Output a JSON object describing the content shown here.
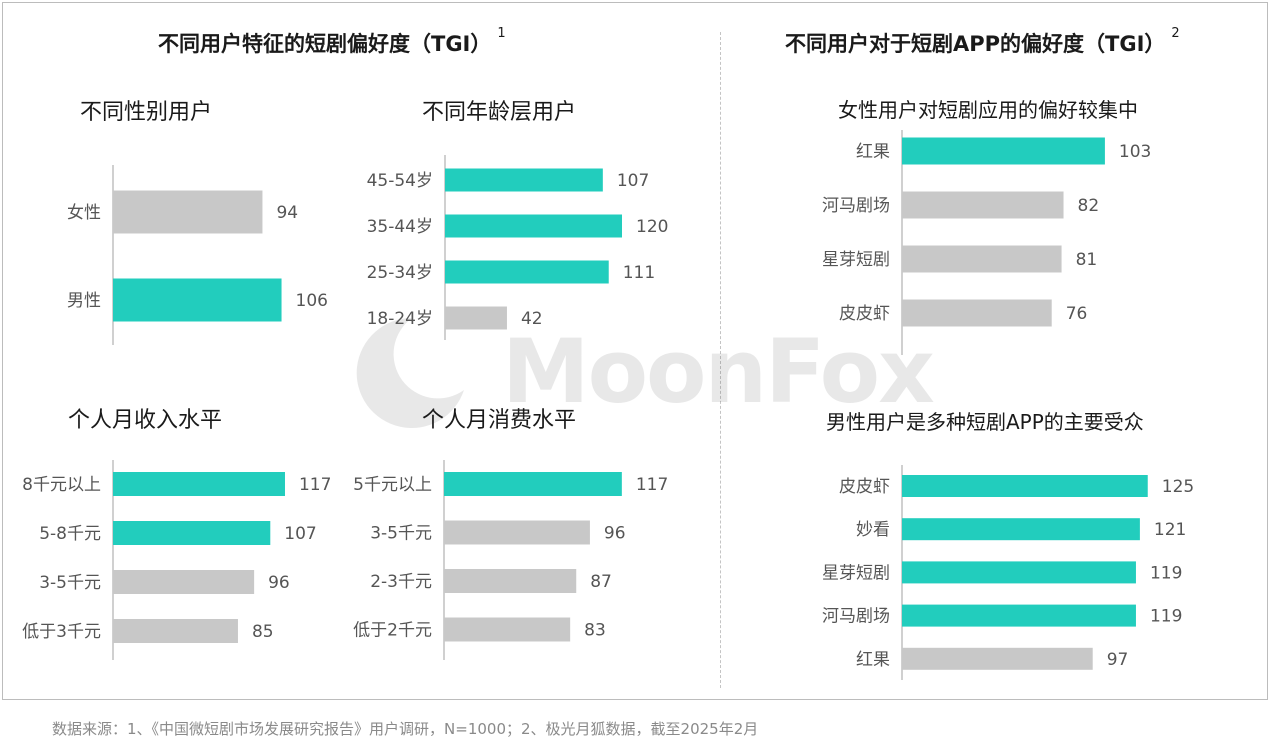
{
  "colors": {
    "highlight": "#22cdbd",
    "normal": "#c8c8c8",
    "axis": "#c0c0c0",
    "label": "#555555"
  },
  "watermark_text": "MoonFox",
  "left_section": {
    "title": "不同用户特征的短剧偏好度（TGI）",
    "note": "1"
  },
  "right_section": {
    "title": "不同用户对于短剧APP的偏好度（TGI）",
    "note": "2"
  },
  "footnote": "数据来源：1、《中国微短剧市场发展研究报告》用户调研，N=1000；2、极光月狐数据，截至2025年2月",
  "chart_data": [
    {
      "id": "gender",
      "type": "bar",
      "orientation": "horizontal",
      "title": "不同性别用户",
      "categories": [
        "女性",
        "男性"
      ],
      "values": [
        94,
        106
      ],
      "highlight": [
        false,
        true
      ]
    },
    {
      "id": "age",
      "type": "bar",
      "orientation": "horizontal",
      "title": "不同年龄层用户",
      "categories": [
        "45-54岁",
        "35-44岁",
        "25-34岁",
        "18-24岁"
      ],
      "values": [
        107,
        120,
        111,
        42
      ],
      "highlight": [
        true,
        true,
        true,
        false
      ]
    },
    {
      "id": "income",
      "type": "bar",
      "orientation": "horizontal",
      "title": "个人月收入水平",
      "categories": [
        "8千元以上",
        "5-8千元",
        "3-5千元",
        "低于3千元"
      ],
      "values": [
        117,
        107,
        96,
        85
      ],
      "highlight": [
        true,
        true,
        false,
        false
      ]
    },
    {
      "id": "spend",
      "type": "bar",
      "orientation": "horizontal",
      "title": "个人月消费水平",
      "categories": [
        "5千元以上",
        "3-5千元",
        "2-3千元",
        "低于2千元"
      ],
      "values": [
        117,
        96,
        87,
        83
      ],
      "highlight": [
        true,
        false,
        false,
        false
      ]
    },
    {
      "id": "female_apps",
      "type": "bar",
      "orientation": "horizontal",
      "title": "女性用户对短剧应用的偏好较集中",
      "categories": [
        "红果",
        "河马剧场",
        "星芽短剧",
        "皮皮虾"
      ],
      "values": [
        103,
        82,
        81,
        76
      ],
      "highlight": [
        true,
        false,
        false,
        false
      ]
    },
    {
      "id": "male_apps",
      "type": "bar",
      "orientation": "horizontal",
      "title": "男性用户是多种短剧APP的主要受众",
      "categories": [
        "皮皮虾",
        "妙看",
        "星芽短剧",
        "河马剧场",
        "红果"
      ],
      "values": [
        125,
        121,
        119,
        119,
        97
      ],
      "highlight": [
        true,
        true,
        true,
        true,
        false
      ]
    }
  ]
}
